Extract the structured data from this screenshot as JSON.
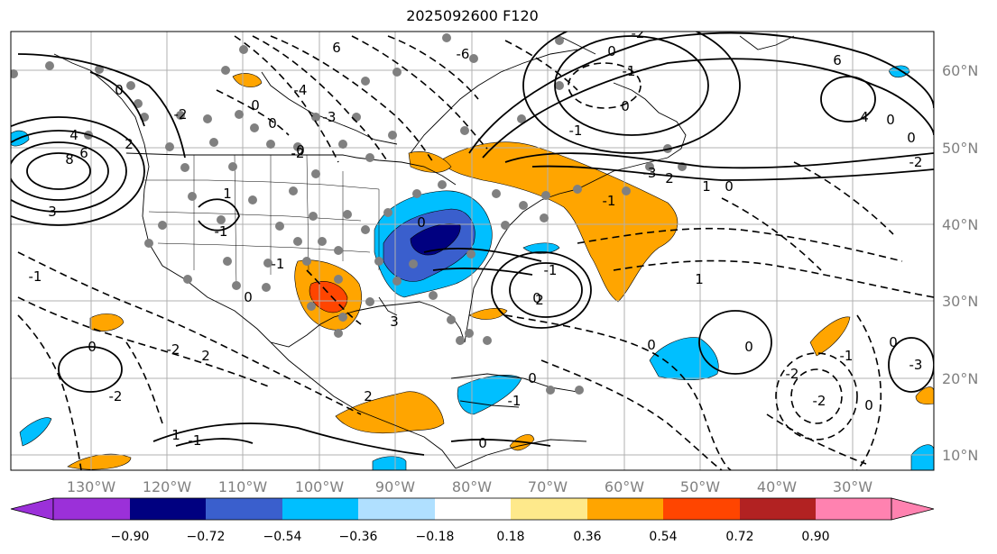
{
  "title": "2025092600 F120",
  "map": {
    "lon_ticks": [
      "130°W",
      "120°W",
      "110°W",
      "100°W",
      "90°W",
      "80°W",
      "70°W",
      "60°W",
      "50°W",
      "40°W",
      "30°W"
    ],
    "lat_ticks": [
      "60°N",
      "50°N",
      "40°N",
      "30°N",
      "20°N",
      "10°N"
    ]
  },
  "contour_labels": [
    "0",
    "2",
    "4",
    "6",
    "8",
    "3",
    "-2",
    "-1",
    "0",
    "0",
    "-2",
    "0",
    "6",
    "-4",
    "-3",
    "-6",
    "0",
    "-1",
    "0",
    "-2",
    "0",
    "0",
    "0",
    "2",
    "6",
    "1",
    "4",
    "-2",
    "0",
    "-3",
    "-1",
    "-1",
    "0",
    "0",
    "-1",
    "3",
    "-1",
    "1",
    "2",
    "-2",
    "-2",
    "-3",
    "-1",
    "-2",
    "0",
    "0",
    "-1",
    "1",
    "1",
    "2",
    "-2",
    "0",
    "0",
    "0",
    "0",
    "-1",
    "-1",
    "2",
    "0"
  ],
  "colorbar": {
    "ticks": [
      "−0.90",
      "−0.72",
      "−0.54",
      "−0.36",
      "−0.18",
      "0.18",
      "0.36",
      "0.54",
      "0.72",
      "0.90"
    ],
    "colors": [
      "#9b30d9",
      "#000080",
      "#3a5fcd",
      "#00bfff",
      "#b0e0ff",
      "#ffffff",
      "#fee98b",
      "#ffa500",
      "#ff4500",
      "#b22222",
      "#ff82b0"
    ]
  }
}
